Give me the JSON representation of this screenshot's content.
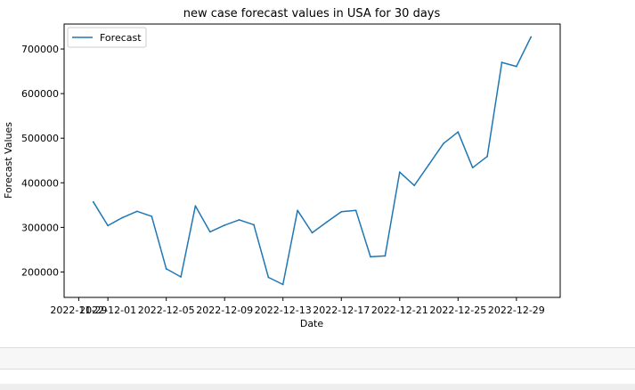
{
  "chart_data": {
    "type": "line",
    "title": "new case forecast values in USA for 30 days",
    "xlabel": "Date",
    "ylabel": "Forecast Values",
    "x": [
      "2022-11-30",
      "2022-12-01",
      "2022-12-02",
      "2022-12-03",
      "2022-12-04",
      "2022-12-05",
      "2022-12-06",
      "2022-12-07",
      "2022-12-08",
      "2022-12-09",
      "2022-12-10",
      "2022-12-11",
      "2022-12-12",
      "2022-12-13",
      "2022-12-14",
      "2022-12-15",
      "2022-12-16",
      "2022-12-17",
      "2022-12-18",
      "2022-12-19",
      "2022-12-20",
      "2022-12-21",
      "2022-12-22",
      "2022-12-23",
      "2022-12-24",
      "2022-12-25",
      "2022-12-26",
      "2022-12-27",
      "2022-12-28",
      "2022-12-29",
      "2022-12-30"
    ],
    "series": [
      {
        "name": "Forecast",
        "color": "#1f77b4",
        "values": [
          357000,
          304000,
          322000,
          336000,
          325000,
          207000,
          189000,
          348000,
          290000,
          305000,
          317000,
          306000,
          188000,
          172000,
          338000,
          288000,
          312000,
          335000,
          338000,
          234000,
          236000,
          424000,
          394000,
          441000,
          488000,
          514000,
          434000,
          459000,
          670000,
          661000,
          727000
        ]
      }
    ],
    "xticks": [
      "2022-11-29",
      "2022-12-01",
      "2022-12-05",
      "2022-12-09",
      "2022-12-13",
      "2022-12-17",
      "2022-12-21",
      "2022-12-25",
      "2022-12-29"
    ],
    "yticks": [
      "200000",
      "300000",
      "400000",
      "500000",
      "600000",
      "700000"
    ],
    "xlim": [
      "2022-11-28",
      "2023-01-01"
    ],
    "ylim": [
      143000,
      756000
    ],
    "legend": "top-left",
    "grid": false
  }
}
